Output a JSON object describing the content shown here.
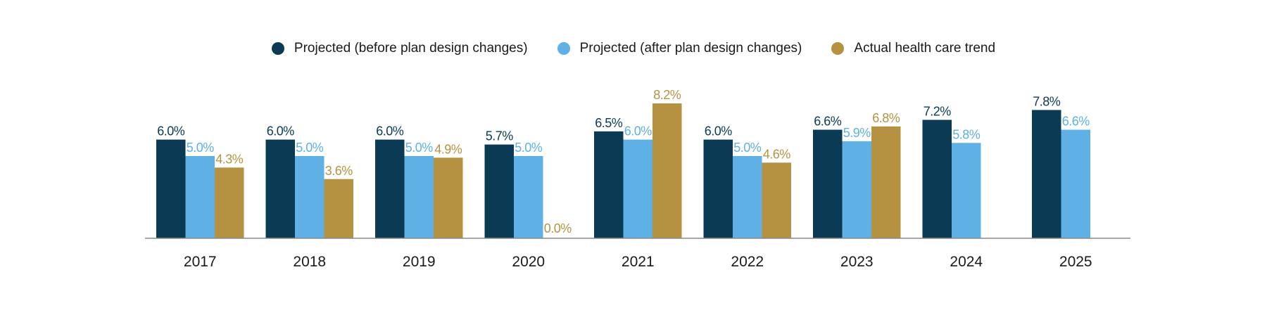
{
  "chart_data": {
    "type": "bar",
    "categories": [
      "2017",
      "2018",
      "2019",
      "2020",
      "2021",
      "2022",
      "2023",
      "2024",
      "2025"
    ],
    "series": [
      {
        "name": "Projected (before plan design changes)",
        "color": "#0b3a55",
        "values": [
          6.0,
          6.0,
          6.0,
          5.7,
          6.5,
          6.0,
          6.6,
          7.2,
          7.8
        ],
        "labels": [
          "6.0%",
          "6.0%",
          "6.0%",
          "5.7%",
          "6.5%",
          "6.0%",
          "6.6%",
          "7.2%",
          "7.8%"
        ]
      },
      {
        "name": "Projected (after plan design changes)",
        "color": "#5fb0e4",
        "values": [
          5.0,
          5.0,
          5.0,
          5.0,
          6.0,
          5.0,
          5.9,
          5.8,
          6.6
        ],
        "labels": [
          "5.0%",
          "5.0%",
          "5.0%",
          "5.0%",
          "6.0%",
          "5.0%",
          "5.9%",
          "5.8%",
          "6.6%"
        ]
      },
      {
        "name": "Actual health care trend",
        "color": "#b59242",
        "values": [
          4.3,
          3.6,
          4.9,
          0.0,
          8.2,
          4.6,
          6.8,
          null,
          null
        ],
        "labels": [
          "4.3%",
          "3.6%",
          "4.9%",
          "0.0%",
          "8.2%",
          "4.6%",
          "6.8%",
          null,
          null
        ]
      }
    ],
    "ylim": [
      0,
      9
    ],
    "grid": false,
    "legend_position": "top-center"
  }
}
